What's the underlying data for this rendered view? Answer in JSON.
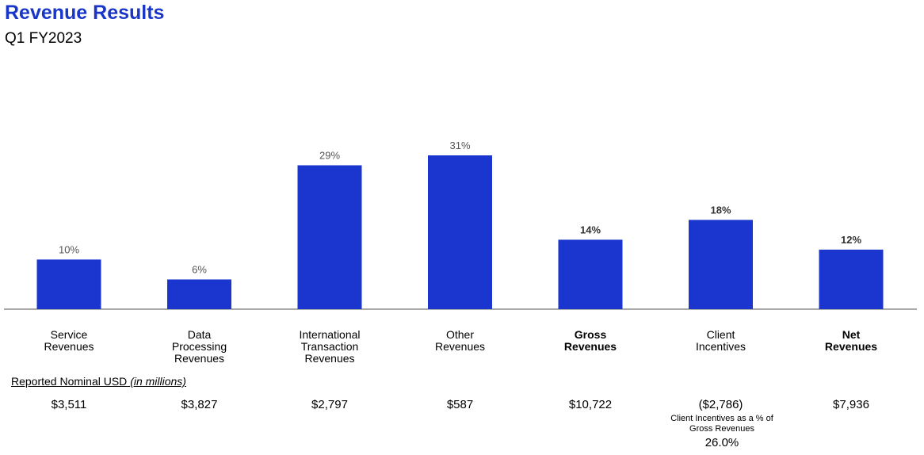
{
  "header": {
    "title": "Revenue Results",
    "subtitle": "Q1 FY2023"
  },
  "chart_data": {
    "type": "bar",
    "categories": [
      "Service\nRevenues",
      "Data\nProcessing\nRevenues",
      "International\nTransaction\nRevenues",
      "Other\nRevenues",
      "Gross\nRevenues",
      "Client\nIncentives",
      "Net\nRevenues"
    ],
    "values": [
      10,
      6,
      29,
      31,
      14,
      18,
      12
    ],
    "value_labels": [
      "10%",
      "6%",
      "29%",
      "31%",
      "14%",
      "18%",
      "12%"
    ],
    "bold_categories": [
      "Gross\nRevenues",
      "Net\nRevenues"
    ],
    "bold_value_labels": [
      "14%",
      "18%",
      "12%"
    ],
    "ylim": [
      0,
      31
    ],
    "grid": false,
    "bar_color": "#1a36cf"
  },
  "table": {
    "units_label": "Reported Nominal USD",
    "units_note": "(in millions)",
    "values": [
      "$3,511",
      "$3,827",
      "$2,797",
      "$587",
      "$10,722",
      "($2,786)",
      "$7,936"
    ]
  },
  "note": {
    "text": "Client Incentives as a % of\nGross Revenues",
    "value": "26.0%"
  }
}
